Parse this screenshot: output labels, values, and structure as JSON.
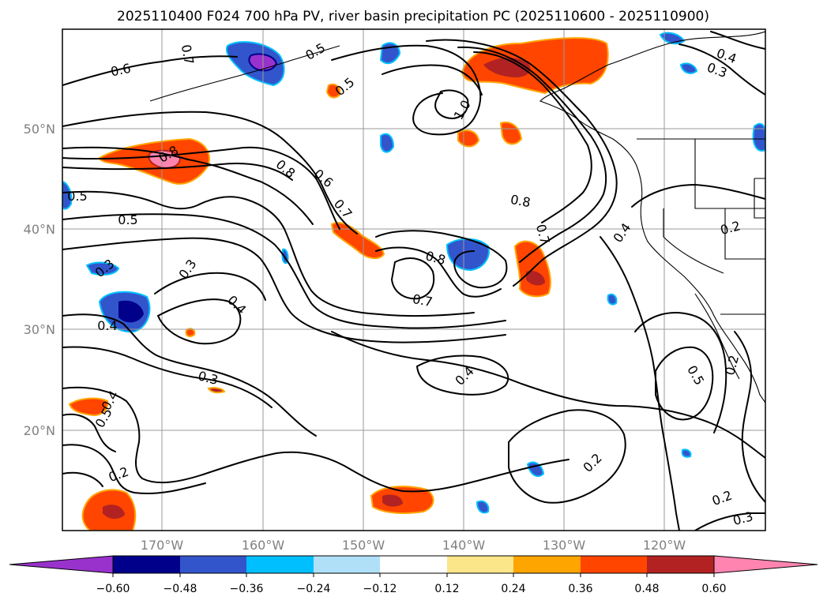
{
  "title": "2025110400 F024 700 hPa PV, river basin precipitation PC (2025110600 - 2025110900)",
  "lat_ticks": [
    "50°N",
    "40°N",
    "30°N",
    "20°N"
  ],
  "lon_ticks": [
    "170°W",
    "160°W",
    "150°W",
    "140°W",
    "130°W",
    "120°W"
  ],
  "colorbar": {
    "colors": [
      "#9932cc",
      "#00008b",
      "#3355cc",
      "#00bfff",
      "#b0e0f8",
      "#ffffff",
      "#fbe68a",
      "#ffa500",
      "#ff4500",
      "#b22222",
      "#ff85b0"
    ],
    "ticks": [
      "−0.60",
      "−0.48",
      "−0.36",
      "−0.24",
      "−0.12",
      "0.12",
      "0.24",
      "0.36",
      "0.48",
      "0.60"
    ]
  },
  "contour_labels": [
    "0.6",
    "0.7",
    "0.5",
    "0.5",
    "0.4",
    "0.3",
    "1.0",
    "0.8",
    "0.8",
    "0.6",
    "0.7",
    "0.5",
    "0.5",
    "0.8",
    "0.7",
    "0.8",
    "0.7",
    "0.4",
    "0.2",
    "0.3",
    "0.3",
    "0.4",
    "0.4",
    "0.3",
    "0.4",
    "0.5",
    "0.4",
    "0.5",
    "0.2",
    "0.2",
    "0.2",
    "0.3",
    "0.2"
  ]
}
